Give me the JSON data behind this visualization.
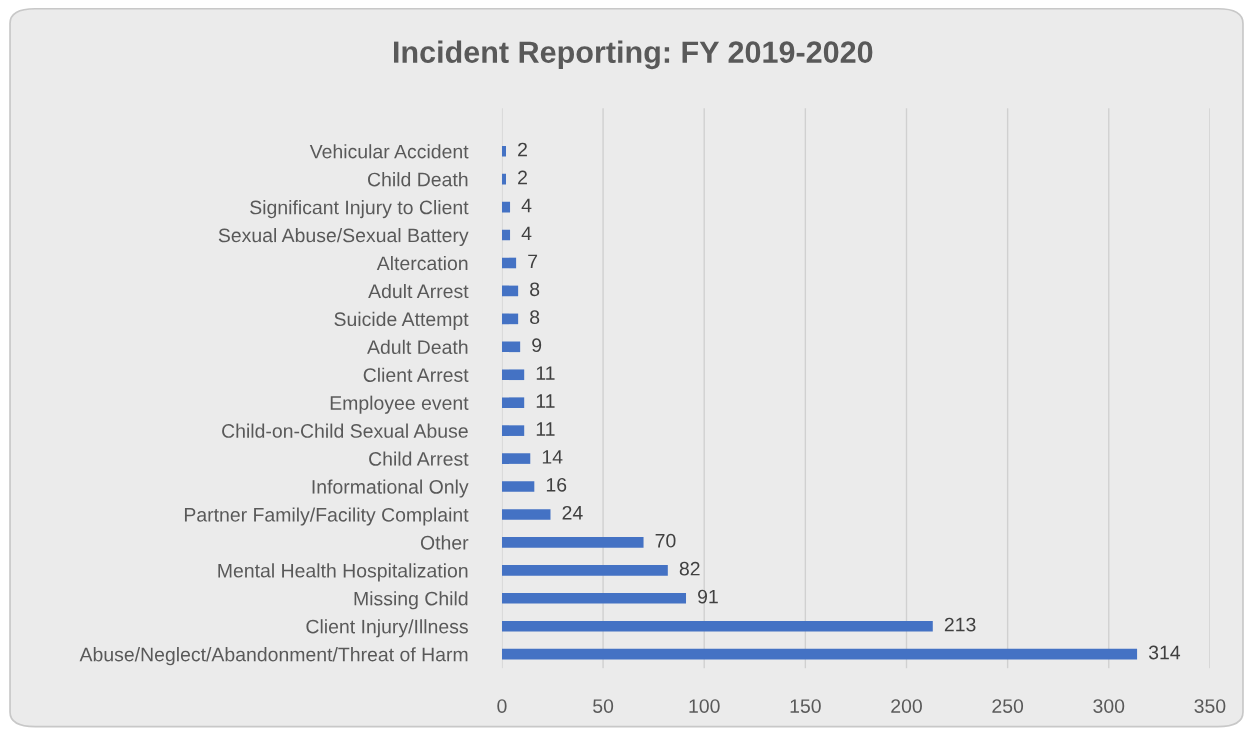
{
  "chart_data": {
    "type": "bar",
    "orientation": "horizontal",
    "title": "Incident Reporting: FY 2019-2020",
    "categories": [
      "Vehicular Accident",
      "Child Death",
      "Significant Injury to Client",
      "Sexual Abuse/Sexual Battery",
      "Altercation",
      "Adult Arrest",
      "Suicide Attempt",
      "Adult Death",
      "Client Arrest",
      "Employee event",
      "Child-on-Child Sexual Abuse",
      "Child Arrest",
      "Informational Only",
      "Partner Family/Facility Complaint",
      "Other",
      "Mental Health Hospitalization",
      "Missing Child",
      "Client Injury/Illness",
      "Abuse/Neglect/Abandonment/Threat of Harm"
    ],
    "values": [
      2,
      2,
      4,
      4,
      7,
      8,
      8,
      9,
      11,
      11,
      11,
      14,
      16,
      24,
      70,
      82,
      91,
      213,
      314
    ],
    "color": "#4472c4",
    "xlim": [
      0,
      350
    ],
    "xticks": [
      0,
      50,
      100,
      150,
      200,
      250,
      300,
      350
    ],
    "grid": "x",
    "data_labels": true
  }
}
